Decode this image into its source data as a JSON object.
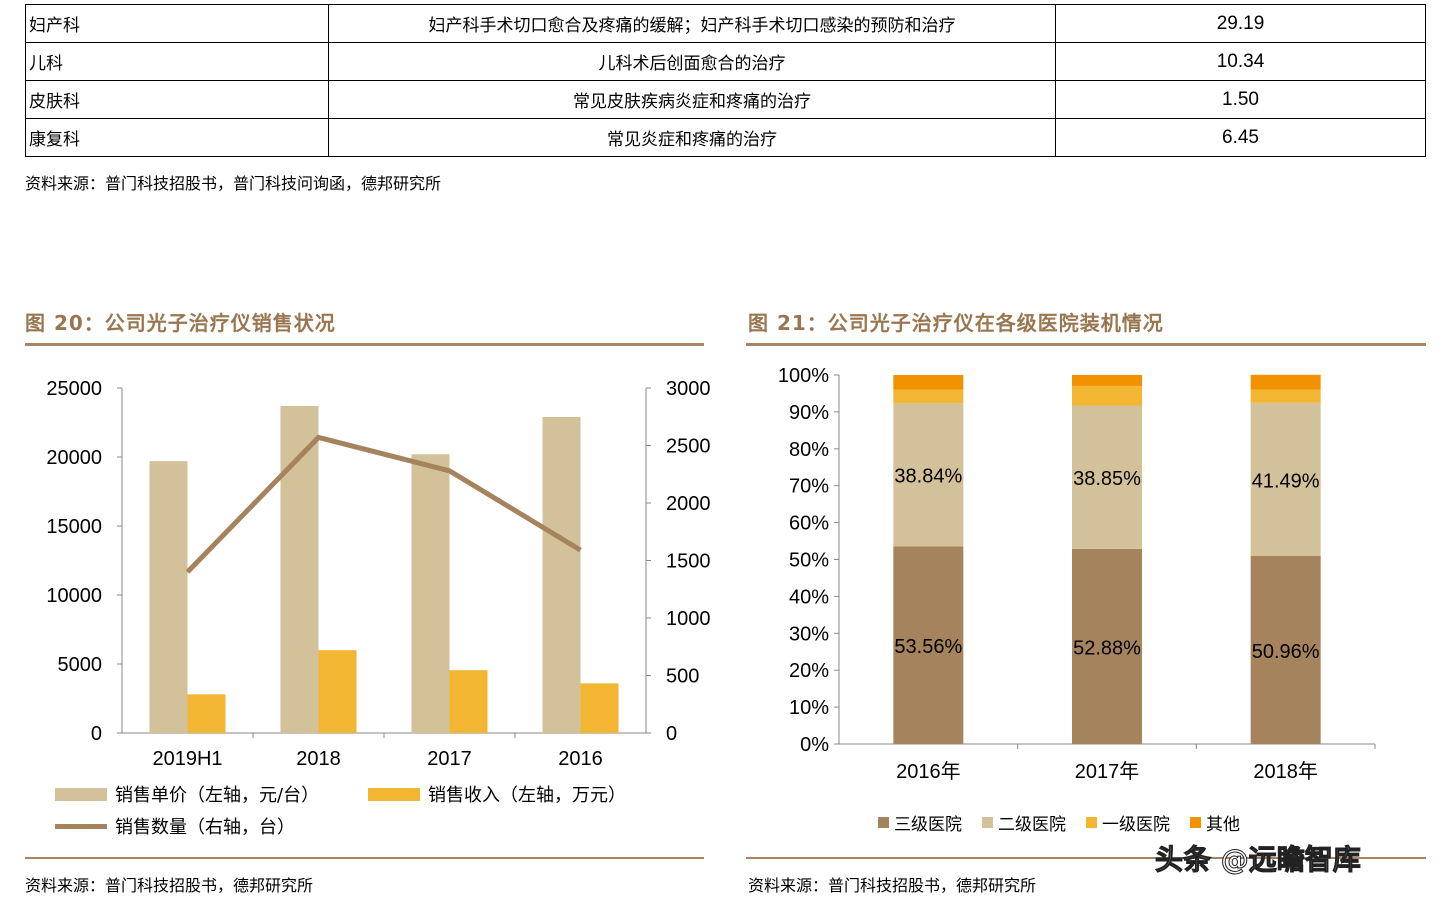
{
  "table": {
    "rows": [
      {
        "dept": "妇产科",
        "indication": "妇产科手术切口愈合及疼痛的缓解；妇产科手术切口感染的预防和治疗",
        "value": "29.19"
      },
      {
        "dept": "儿科",
        "indication": "儿科术后创面愈合的治疗",
        "value": "10.34"
      },
      {
        "dept": "皮肤科",
        "indication": "常见皮肤疾病炎症和疼痛的治疗",
        "value": "1.50"
      },
      {
        "dept": "康复科",
        "indication": "常见炎症和疼痛的治疗",
        "value": "6.45"
      }
    ],
    "source": "资料来源：普门科技招股书，普门科技问询函，德邦研究所"
  },
  "fig20": {
    "title": "图 20：公司光子治疗仪销售状况",
    "source": "资料来源：普门科技招股书，德邦研究所"
  },
  "fig21": {
    "title": "图 21：公司光子治疗仪在各级医院装机情况",
    "source": "资料来源：普门科技招股书，德邦研究所"
  },
  "watermark": "头条 @远瞻智库",
  "chart_data": [
    {
      "type": "bar",
      "categories": [
        "2019H1",
        "2018",
        "2017",
        "2016"
      ],
      "series": [
        {
          "name": "销售单价（左轴，元/台）",
          "type": "bar",
          "axis": "left",
          "values": [
            19700,
            23700,
            20200,
            22900
          ],
          "color": "#d3c19a"
        },
        {
          "name": "销售收入（左轴，万元）",
          "type": "bar",
          "axis": "left",
          "values": [
            2800,
            6000,
            4550,
            3600
          ],
          "color": "#f2b632"
        },
        {
          "name": "销售数量（右轴，台）",
          "type": "line",
          "axis": "right",
          "values": [
            1400,
            2570,
            2280,
            1590
          ],
          "color": "#a5835c"
        }
      ],
      "ylim": [
        0,
        25000
      ],
      "yticks": [
        "0",
        "5000",
        "10000",
        "15000",
        "20000",
        "25000"
      ],
      "y2lim": [
        0,
        3000
      ],
      "y2ticks": [
        "0",
        "500",
        "1000",
        "1500",
        "2000",
        "2500",
        "3000"
      ],
      "legend": "bottom",
      "grid": false
    },
    {
      "type": "bar",
      "stacked": true,
      "categories": [
        "2016年",
        "2017年",
        "2018年"
      ],
      "series": [
        {
          "name": "三级医院",
          "values": [
            53.56,
            52.88,
            50.96
          ],
          "labels": [
            "53.56%",
            "52.88%",
            "50.96%"
          ],
          "color": "#a5835c"
        },
        {
          "name": "二级医院",
          "values": [
            38.84,
            38.85,
            41.49
          ],
          "labels": [
            "38.84%",
            "38.85%",
            "41.49%"
          ],
          "color": "#d3c19a"
        },
        {
          "name": "一级医院",
          "values": [
            3.6,
            5.3,
            3.6
          ],
          "color": "#f2b632"
        },
        {
          "name": "其他",
          "values": [
            4.0,
            3.0,
            4.0
          ],
          "color": "#f39200"
        }
      ],
      "ylim": [
        0,
        100
      ],
      "yticks": [
        "0%",
        "10%",
        "20%",
        "30%",
        "40%",
        "50%",
        "60%",
        "70%",
        "80%",
        "90%",
        "100%"
      ],
      "legend": "bottom",
      "grid": false
    }
  ]
}
